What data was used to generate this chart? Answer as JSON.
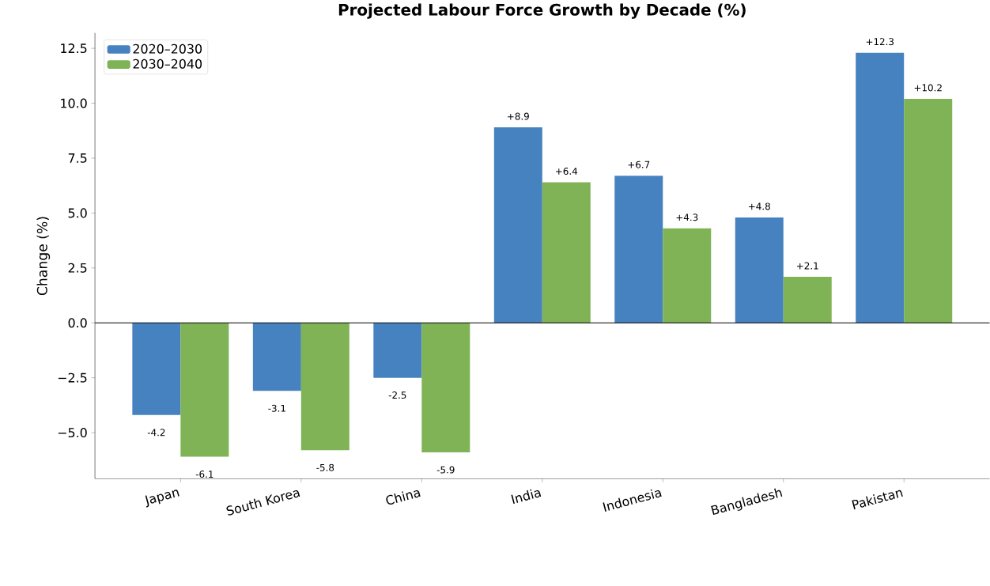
{
  "chart_data": {
    "type": "bar",
    "title": "Projected Labour Force Growth by Decade (%)",
    "ylabel": "Change (%)",
    "categories": [
      "Japan",
      "South Korea",
      "China",
      "India",
      "Indonesia",
      "Bangladesh",
      "Pakistan"
    ],
    "series": [
      {
        "name": "2020–2030",
        "color": "#4682c0",
        "values": [
          -4.2,
          -3.1,
          -2.5,
          8.9,
          6.7,
          4.8,
          12.3
        ],
        "value_labels": [
          "-4.2",
          "-3.1",
          "-2.5",
          "+8.9",
          "+6.7",
          "+4.8",
          "+12.3"
        ]
      },
      {
        "name": "2030–2040",
        "color": "#7fb356",
        "values": [
          -6.1,
          -5.8,
          -5.9,
          6.4,
          4.3,
          2.1,
          10.2
        ],
        "value_labels": [
          "-6.1",
          "-5.8",
          "-5.9",
          "+6.4",
          "+4.3",
          "+2.1",
          "+10.2"
        ]
      }
    ],
    "ylim": [
      -7.1,
      13.2
    ],
    "yticks": [
      {
        "value": -5,
        "label": "−5.0"
      },
      {
        "value": -2.5,
        "label": "−2.5"
      },
      {
        "value": 0,
        "label": "0.0"
      },
      {
        "value": 2.5,
        "label": "2.5"
      },
      {
        "value": 5,
        "label": "5.0"
      },
      {
        "value": 7.5,
        "label": "7.5"
      },
      {
        "value": 10,
        "label": "10.0"
      },
      {
        "value": 12.5,
        "label": "12.5"
      }
    ],
    "ref_lines": [
      {
        "axis": "y",
        "value": 0,
        "color": "#000000"
      }
    ],
    "legend": "top left",
    "grid": false
  }
}
